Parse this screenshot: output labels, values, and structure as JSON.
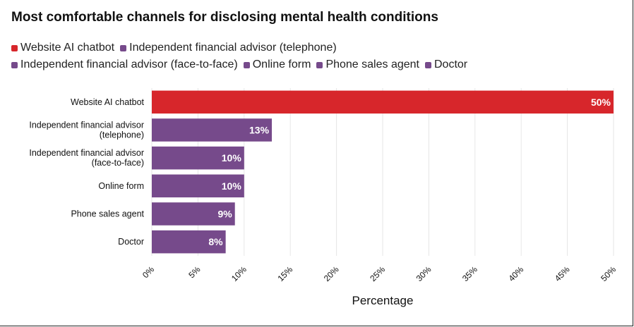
{
  "colors": {
    "accent_red": "#D7262B",
    "purple": "#764A8B",
    "grid": "#E6E6E6"
  },
  "chart_data": {
    "type": "bar",
    "orientation": "horizontal",
    "title": "Most comfortable channels for disclosing mental health conditions",
    "xlabel": "Percentage",
    "ylabel": "",
    "xlim": [
      0,
      50
    ],
    "x_ticks": [
      "0%",
      "5%",
      "10%",
      "15%",
      "20%",
      "25%",
      "30%",
      "35%",
      "40%",
      "45%",
      "50%"
    ],
    "grid": "vertical",
    "legend_position": "top-left",
    "categories": [
      [
        "Website AI chatbot"
      ],
      [
        "Independent financial advisor",
        "(telephone)"
      ],
      [
        "Independent financial advisor",
        "(face-to-face)"
      ],
      [
        "Online form"
      ],
      [
        "Phone sales agent"
      ],
      [
        "Doctor"
      ]
    ],
    "values": [
      50,
      13,
      10,
      10,
      9,
      8
    ],
    "value_labels": [
      "50%",
      "13%",
      "10%",
      "10%",
      "9%",
      "8%"
    ],
    "bar_colors": [
      "#D7262B",
      "#764A8B",
      "#764A8B",
      "#764A8B",
      "#764A8B",
      "#764A8B"
    ],
    "legend": {
      "row1": [
        {
          "label": "Website AI chatbot",
          "color": "#D7262B"
        },
        {
          "label": "Independent financial advisor (telephone)",
          "color": "#764A8B"
        }
      ],
      "row2": [
        {
          "label": "Independent financial advisor (face-to-face)",
          "color": "#764A8B"
        },
        {
          "label": "Online form",
          "color": "#764A8B"
        },
        {
          "label": "Phone sales agent",
          "color": "#764A8B"
        },
        {
          "label": "Doctor",
          "color": "#764A8B"
        }
      ]
    }
  }
}
